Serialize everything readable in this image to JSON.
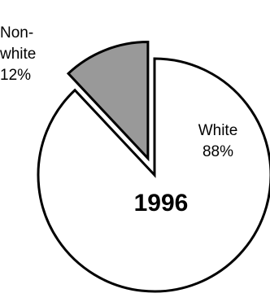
{
  "chart_data": {
    "type": "pie",
    "title": "1996",
    "start_angle_deg": 0,
    "direction": "clockwise",
    "slices": [
      {
        "name": "White",
        "value": 88,
        "label_line1": "White",
        "label_line2": "88%",
        "color": "#ffffff",
        "exploded": false
      },
      {
        "name": "Non-white",
        "value": 12,
        "label_line1": "Non-",
        "label_line2": "white",
        "label_line3": "12%",
        "color": "#999999",
        "exploded": true
      }
    ],
    "legend": "none"
  }
}
